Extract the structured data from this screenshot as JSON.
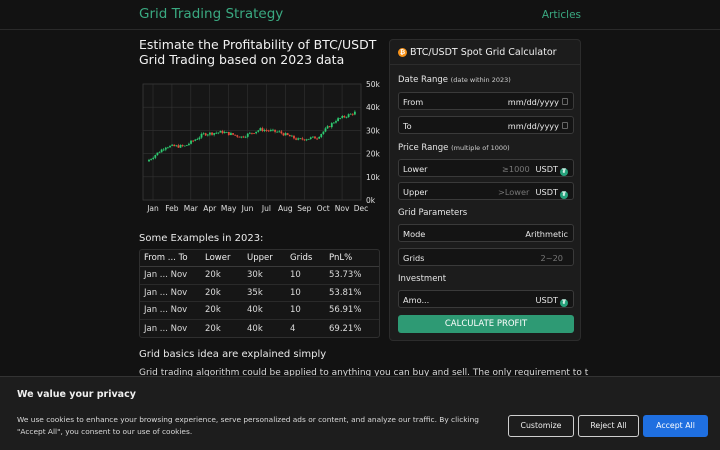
{
  "header": {
    "brand": "Grid Trading Strategy",
    "nav_link": "Articles"
  },
  "main": {
    "heading": "Estimate the Profitability of BTC/USDT Grid Trading based on 2023 data",
    "examples_title": "Some Examples in 2023:",
    "examples_columns": [
      "From ... To",
      "Lower",
      "Upper",
      "Grids",
      "PnL%"
    ],
    "examples_rows": [
      [
        "Jan ... Nov",
        "20k",
        "30k",
        "10",
        "53.73%"
      ],
      [
        "Jan ... Nov",
        "20k",
        "35k",
        "10",
        "53.81%"
      ],
      [
        "Jan ... Nov",
        "20k",
        "40k",
        "10",
        "56.91%"
      ],
      [
        "Jan ... Nov",
        "20k",
        "40k",
        "4",
        "69.21%"
      ]
    ],
    "basics_title": "Grid basics idea are explained simply",
    "basics_text": "Grid trading algorithm could be applied to anything you can buy and sell. The only requirement to trade is to"
  },
  "chart_data": {
    "type": "candlestick",
    "x_tick_labels": [
      "Jan",
      "Feb",
      "Mar",
      "Apr",
      "May",
      "Jun",
      "Jul",
      "Aug",
      "Sep",
      "Oct",
      "Nov",
      "Dec"
    ],
    "y_tick_labels": [
      "0k",
      "10k",
      "20k",
      "30k",
      "40k",
      "50k"
    ],
    "ylim": [
      0,
      50000
    ],
    "grid": true,
    "approx_monthly_close": [
      23100,
      23200,
      28400,
      29300,
      27200,
      30400,
      29200,
      26000,
      27000,
      34500,
      37700
    ]
  },
  "calculator": {
    "title": "BTC/USDT Spot Grid Calculator",
    "btc_glyph": "₿",
    "usdt_glyph": "₮",
    "date_range_label": "Date Range",
    "date_range_note": "(date within 2023)",
    "from_label": "From",
    "from_value": "mm/dd/yyyy",
    "to_label": "To",
    "to_value": "mm/dd/yyyy",
    "price_range_label": "Price Range",
    "price_range_note": "(multiple of 1000)",
    "lower_label": "Lower",
    "lower_placeholder": "≥1000",
    "upper_label": "Upper",
    "upper_placeholder": ">Lower",
    "currency": "USDT",
    "grid_params_label": "Grid Parameters",
    "mode_label": "Mode",
    "mode_value": "Arithmetic",
    "grids_label": "Grids",
    "grids_placeholder": "2~20",
    "investment_label": "Investment",
    "amount_label": "Amo...",
    "button_label": "CALCULATE PROFIT"
  },
  "cookie": {
    "title": "We value your privacy",
    "text": "We use cookies to enhance your browsing experience, serve personalized ads or content, and analyze our traffic. By clicking \"Accept All\", you consent to our use of cookies.",
    "customize": "Customize",
    "reject": "Reject All",
    "accept": "Accept All"
  },
  "colors": {
    "accent": "#3aa981",
    "up_candle": "#2ecc71",
    "down_candle": "#e74c3c",
    "accept_button": "#1f6fe0",
    "btc": "#f7931a",
    "usdt": "#26a17b"
  }
}
